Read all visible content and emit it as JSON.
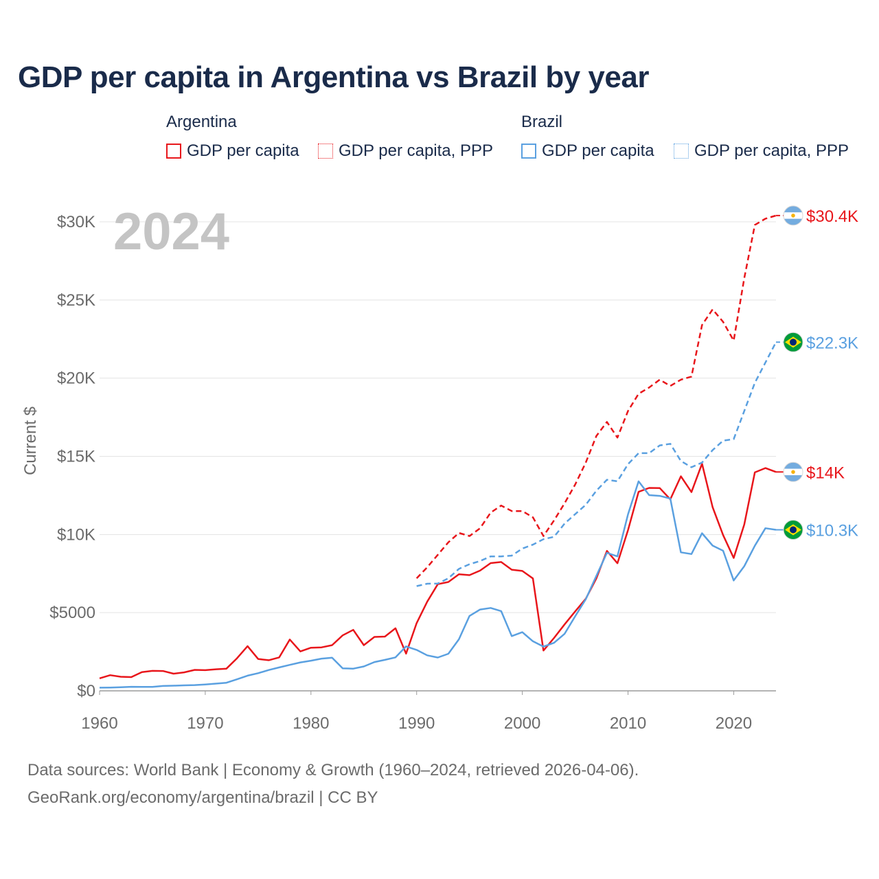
{
  "chart_data": {
    "type": "line",
    "title": "GDP per capita in Argentina vs Brazil by year",
    "year_label": "2024",
    "ylabel": "Current $",
    "xlabel": "",
    "xlim": [
      1960,
      2024
    ],
    "ylim": [
      0,
      30000
    ],
    "x_ticks": [
      1960,
      1970,
      1980,
      1990,
      2000,
      2010,
      2020
    ],
    "x_tick_labels": [
      "1960",
      "1970",
      "1980",
      "1990",
      "2000",
      "2010",
      "2020"
    ],
    "y_ticks": [
      0,
      5000,
      10000,
      15000,
      20000,
      25000,
      30000
    ],
    "y_tick_labels": [
      "$0",
      "$5000",
      "$10K",
      "$15K",
      "$20K",
      "$25K",
      "$30K"
    ],
    "grid": true,
    "legend": {
      "groups": [
        {
          "name": "Argentina",
          "items": [
            {
              "label": "GDP per capita",
              "style": "solid",
              "color": "#e8161b"
            },
            {
              "label": "GDP per capita, PPP",
              "style": "dashed",
              "color": "#e8161b"
            }
          ]
        },
        {
          "name": "Brazil",
          "items": [
            {
              "label": "GDP per capita",
              "style": "solid",
              "color": "#5aa0e0"
            },
            {
              "label": "GDP per capita, PPP",
              "style": "dashed",
              "color": "#5aa0e0"
            }
          ]
        }
      ]
    },
    "series": [
      {
        "name": "Argentina GDP per capita",
        "country": "Argentina",
        "color": "#e8161b",
        "dash": false,
        "start_year": 1960,
        "end_label": "$14K",
        "values": [
          800,
          1000,
          900,
          880,
          1200,
          1280,
          1270,
          1100,
          1180,
          1340,
          1320,
          1380,
          1420,
          2080,
          2860,
          2040,
          1960,
          2140,
          3280,
          2520,
          2760,
          2780,
          2920,
          3550,
          3900,
          2920,
          3450,
          3470,
          4000,
          2380,
          4330,
          5700,
          6820,
          6960,
          7460,
          7400,
          7690,
          8170,
          8240,
          7750,
          7670,
          7190,
          2580,
          3380,
          4250,
          5080,
          5890,
          7190,
          8950,
          8160,
          10280,
          12730,
          12980,
          12970,
          12250,
          13720,
          12710,
          14530,
          11750,
          9960,
          8500,
          10640,
          13970,
          14250,
          14000
        ]
      },
      {
        "name": "Argentina GDP per capita, PPP",
        "country": "Argentina",
        "color": "#e8161b",
        "dash": true,
        "start_year": 1990,
        "end_label": "$30.4K",
        "values": [
          7200,
          7900,
          8700,
          9500,
          10100,
          9900,
          10400,
          11400,
          11850,
          11500,
          11500,
          11100,
          9900,
          10900,
          12000,
          13200,
          14600,
          16300,
          17200,
          16200,
          17900,
          19000,
          19400,
          19900,
          19500,
          19900,
          20100,
          23400,
          24400,
          23600,
          22400,
          26400,
          29800,
          30200,
          30400
        ]
      },
      {
        "name": "Brazil GDP per capita",
        "country": "Brazil",
        "color": "#5aa0e0",
        "dash": false,
        "start_year": 1960,
        "end_label": "$10.3K",
        "values": [
          200,
          210,
          230,
          260,
          250,
          250,
          310,
          330,
          350,
          370,
          410,
          460,
          520,
          740,
          970,
          1130,
          1330,
          1500,
          1660,
          1820,
          1930,
          2060,
          2120,
          1440,
          1420,
          1560,
          1840,
          1980,
          2140,
          2840,
          2620,
          2270,
          2130,
          2370,
          3300,
          4790,
          5200,
          5300,
          5100,
          3500,
          3750,
          3170,
          2830,
          3070,
          3650,
          4770,
          5860,
          7350,
          8830,
          8600,
          11290,
          13400,
          12520,
          12470,
          12300,
          8860,
          8750,
          10080,
          9290,
          8960,
          7060,
          7970,
          9280,
          10400,
          10300
        ]
      },
      {
        "name": "Brazil GDP per capita, PPP",
        "country": "Brazil",
        "color": "#5aa0e0",
        "dash": true,
        "start_year": 1990,
        "end_label": "$22.3K",
        "values": [
          6700,
          6850,
          6860,
          7200,
          7800,
          8100,
          8300,
          8600,
          8600,
          8650,
          9100,
          9350,
          9700,
          9850,
          10700,
          11300,
          11900,
          12800,
          13500,
          13400,
          14500,
          15200,
          15200,
          15700,
          15800,
          14700,
          14300,
          14600,
          15400,
          16000,
          16100,
          17900,
          19700,
          21000,
          22300
        ]
      }
    ]
  },
  "footer": {
    "sources": "Data sources: World Bank | Economy & Growth (1960–2024, retrieved 2026-04-06).",
    "credit": "GeoRank.org/economy/argentina/brazil | CC BY"
  }
}
